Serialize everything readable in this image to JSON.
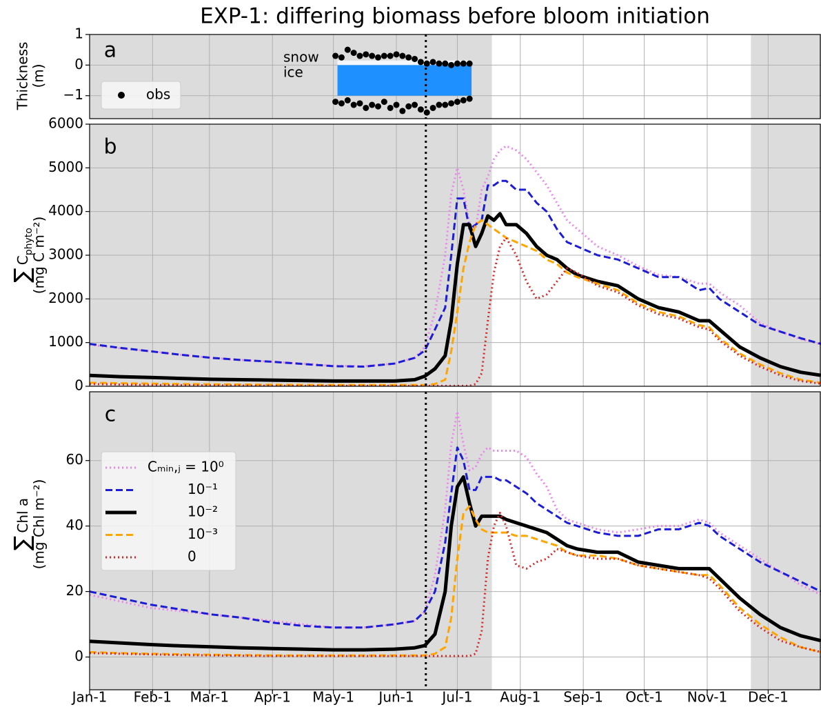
{
  "chart_data": [
    {
      "type": "scatter",
      "title": "EXP-1: differing biomass before bloom initiation",
      "label": "a",
      "ylabel": [
        "Thickness",
        "(m)"
      ],
      "annotations": [
        "snow",
        "ice"
      ],
      "xlim": [
        0,
        360
      ],
      "xticks": [
        0,
        31,
        59,
        90,
        120,
        151,
        181,
        212,
        243,
        273,
        304,
        334
      ],
      "ylim": [
        -1.75,
        1
      ],
      "yticks": [
        {
          "value": -1,
          "label": "−1"
        },
        0,
        1
      ],
      "grid": true,
      "shaded": [
        [
          0,
          198
        ],
        [
          325.5,
          360
        ]
      ],
      "shade_color": "#dcdcdc",
      "vline": 165.5,
      "snow_layer": {
        "x": [
          122,
          188
        ],
        "top": 0.15,
        "bottom": 0,
        "color": "#f3f6fa"
      },
      "ice_layer": {
        "x": [
          122,
          188
        ],
        "top": 0,
        "bottom": -1.0,
        "color": "#1e90ff"
      },
      "obs": {
        "name": "obs",
        "color": "#000000",
        "x": [
          121,
          124,
          127,
          130,
          133,
          136,
          139,
          142,
          145,
          148,
          151,
          154,
          157,
          160,
          163,
          166,
          169,
          172,
          175,
          178,
          181,
          184,
          187
        ],
        "snow_surface": [
          0.3,
          0.25,
          0.5,
          0.4,
          0.3,
          0.35,
          0.3,
          0.25,
          0.3,
          0.3,
          0.35,
          0.3,
          0.25,
          0.2,
          0.1,
          0.05,
          0.1,
          0.05,
          0.05,
          0.0,
          0.05,
          0.05,
          0.05
        ],
        "ice_bottom": [
          -1.2,
          -1.25,
          -1.15,
          -1.3,
          -1.25,
          -1.4,
          -1.3,
          -1.35,
          -1.2,
          -1.4,
          -1.3,
          -1.5,
          -1.35,
          -1.3,
          -1.45,
          -1.55,
          -1.4,
          -1.3,
          -1.3,
          -1.25,
          -1.2,
          -1.15,
          -1.1
        ]
      }
    },
    {
      "type": "line",
      "label": "b",
      "ylabel": {
        "symbol": "∑",
        "main": "C",
        "sub": "phyto",
        "units": "(mg C m⁻²)"
      },
      "xlim": [
        0,
        360
      ],
      "xticks": [
        0,
        31,
        59,
        90,
        120,
        151,
        181,
        212,
        243,
        273,
        304,
        334
      ],
      "ylim": [
        0,
        6000
      ],
      "yticks": [
        0,
        1000,
        2000,
        3000,
        4000,
        5000,
        6000
      ],
      "grid": true,
      "shaded": [
        [
          0,
          198
        ],
        [
          325.5,
          360
        ]
      ],
      "shade_color": "#dcdcdc",
      "vline": 165.5,
      "x": [
        0,
        15,
        30,
        45,
        60,
        75,
        90,
        105,
        120,
        135,
        150,
        160,
        165,
        170,
        175,
        178,
        181,
        184,
        187,
        190,
        193,
        196,
        199,
        202,
        205,
        210,
        215,
        220,
        225,
        230,
        235,
        240,
        250,
        260,
        270,
        280,
        290,
        300,
        305,
        310,
        320,
        330,
        340,
        350,
        360
      ],
      "series": [
        {
          "color": "#ee82ee",
          "style": "dotted",
          "values": [
            950,
            870,
            800,
            720,
            650,
            600,
            560,
            520,
            470,
            460,
            520,
            650,
            900,
            1700,
            3000,
            4400,
            5000,
            4500,
            3700,
            3600,
            4500,
            4800,
            5200,
            5400,
            5500,
            5400,
            5200,
            4900,
            4600,
            4200,
            3800,
            3600,
            3200,
            3000,
            2750,
            2550,
            2500,
            2350,
            2350,
            2150,
            1850,
            1450,
            1250,
            1080,
            960
          ]
        },
        {
          "color": "#1c1cd6",
          "style": "dashed",
          "values": [
            970,
            880,
            800,
            720,
            650,
            600,
            560,
            510,
            460,
            450,
            520,
            650,
            820,
            1300,
            1800,
            3000,
            4300,
            4300,
            3600,
            3700,
            3800,
            4600,
            4600,
            4700,
            4700,
            4500,
            4500,
            4200,
            4000,
            3600,
            3300,
            3200,
            3000,
            2900,
            2700,
            2500,
            2500,
            2200,
            2250,
            2000,
            1700,
            1400,
            1250,
            1100,
            970
          ]
        },
        {
          "color": "#000000",
          "style": "solid",
          "values": [
            250,
            220,
            200,
            180,
            160,
            150,
            140,
            130,
            120,
            120,
            120,
            150,
            230,
            400,
            700,
            1500,
            2800,
            3700,
            3700,
            3200,
            3500,
            3900,
            3800,
            3950,
            3700,
            3700,
            3500,
            3200,
            3000,
            2900,
            2700,
            2550,
            2400,
            2300,
            2000,
            1800,
            1700,
            1500,
            1500,
            1300,
            900,
            650,
            450,
            320,
            250
          ]
        },
        {
          "color": "#ffa500",
          "style": "dashed",
          "values": [
            80,
            70,
            60,
            50,
            45,
            40,
            35,
            30,
            30,
            30,
            30,
            30,
            30,
            50,
            150,
            800,
            1700,
            2700,
            3300,
            3700,
            3800,
            3700,
            3600,
            3500,
            3400,
            3300,
            3200,
            3100,
            2900,
            2800,
            2600,
            2500,
            2350,
            2200,
            1900,
            1700,
            1600,
            1400,
            1350,
            1100,
            750,
            500,
            300,
            150,
            80
          ]
        },
        {
          "color": "#d62728",
          "style": "dotted",
          "values": [
            50,
            40,
            30,
            25,
            20,
            15,
            12,
            10,
            10,
            10,
            10,
            10,
            10,
            10,
            10,
            10,
            10,
            10,
            10,
            50,
            300,
            1500,
            2600,
            3200,
            3400,
            3000,
            2400,
            2000,
            2100,
            2400,
            2700,
            2600,
            2300,
            2150,
            1850,
            1650,
            1550,
            1350,
            1300,
            1050,
            700,
            450,
            250,
            120,
            60
          ]
        }
      ]
    },
    {
      "type": "line",
      "label": "c",
      "ylabel": {
        "symbol": "∑",
        "main": "Chl a",
        "units": "(mg Chl m⁻²)"
      },
      "xlim": [
        0,
        360
      ],
      "xticks": [
        {
          "value": 0,
          "label": "Jan-1"
        },
        {
          "value": 31,
          "label": "Feb-1"
        },
        {
          "value": 59,
          "label": "Mar-1"
        },
        {
          "value": 90,
          "label": "Apr-1"
        },
        {
          "value": 120,
          "label": "May-1"
        },
        {
          "value": 151,
          "label": "Jun-1"
        },
        {
          "value": 181,
          "label": "Jul-1"
        },
        {
          "value": 212,
          "label": "Aug-1"
        },
        {
          "value": 243,
          "label": "Sep-1"
        },
        {
          "value": 273,
          "label": "Oct-1"
        },
        {
          "value": 304,
          "label": "Nov-1"
        },
        {
          "value": 334,
          "label": "Dec-1"
        }
      ],
      "ylim": [
        -10,
        81
      ],
      "yticks": [
        0,
        20,
        40,
        60
      ],
      "grid": true,
      "shaded": [
        [
          0,
          198
        ],
        [
          325.5,
          360
        ]
      ],
      "shade_color": "#dcdcdc",
      "vline": 165.5,
      "x": [
        0,
        15,
        30,
        45,
        60,
        75,
        90,
        105,
        120,
        135,
        150,
        160,
        165,
        170,
        175,
        178,
        181,
        184,
        187,
        190,
        193,
        196,
        199,
        202,
        205,
        210,
        215,
        220,
        225,
        230,
        235,
        240,
        250,
        260,
        270,
        280,
        290,
        300,
        305,
        310,
        320,
        330,
        340,
        350,
        360
      ],
      "series": [
        {
          "name": "Cₘᵢₙ,ⱼ = 10⁰",
          "color": "#ee82ee",
          "style": "dotted",
          "values": [
            19,
            17,
            15,
            14,
            13,
            12,
            11,
            10,
            9,
            9,
            10,
            11,
            14,
            25,
            45,
            65,
            75,
            65,
            57,
            58,
            62,
            64,
            63,
            63,
            63,
            63,
            61,
            56,
            52,
            45,
            42,
            41,
            39,
            38,
            39,
            40,
            40,
            42,
            41,
            38,
            34,
            30,
            26,
            22,
            19
          ]
        },
        {
          "name": "10⁻¹",
          "color": "#1c1cd6",
          "style": "dashed",
          "values": [
            20,
            18,
            16,
            14.5,
            13,
            12,
            10.5,
            9.5,
            9,
            9,
            10,
            11,
            14,
            20,
            35,
            50,
            64,
            60,
            51,
            51,
            55,
            55,
            55,
            54,
            54,
            52,
            50,
            47,
            45,
            43,
            41,
            40,
            38,
            37,
            37,
            39,
            39,
            41,
            40,
            37,
            33,
            29,
            26,
            23,
            20
          ]
        },
        {
          "name": "10⁻²",
          "color": "#000000",
          "style": "solid",
          "values": [
            4.8,
            4.3,
            3.8,
            3.4,
            3.1,
            2.8,
            2.6,
            2.4,
            2.2,
            2.2,
            2.4,
            2.8,
            3.5,
            7,
            20,
            40,
            52,
            55,
            47,
            40,
            43,
            43,
            43,
            43,
            42,
            41,
            40,
            39,
            38,
            36,
            34,
            33,
            32,
            32,
            29,
            28,
            27,
            27,
            27,
            24,
            18,
            13,
            9,
            6.5,
            5
          ]
        },
        {
          "name": "10⁻³",
          "color": "#ffa500",
          "style": "dashed",
          "values": [
            1.5,
            1.2,
            1,
            0.8,
            0.7,
            0.6,
            0.5,
            0.5,
            0.5,
            0.5,
            0.5,
            0.5,
            0.5,
            1,
            3,
            12,
            30,
            44,
            46,
            42,
            39,
            38,
            38,
            38,
            38,
            37,
            37,
            36,
            35,
            34,
            32,
            31,
            31,
            30,
            28,
            27,
            26,
            25,
            25,
            22,
            15,
            10,
            6,
            3,
            1.5
          ]
        },
        {
          "name": "0",
          "color": "#d62728",
          "style": "dotted",
          "values": [
            1.2,
            1,
            0.8,
            0.6,
            0.5,
            0.4,
            0.3,
            0.3,
            0.3,
            0.3,
            0.3,
            0.3,
            0.3,
            0.3,
            0.3,
            0.3,
            0.3,
            0.3,
            0.3,
            1,
            8,
            30,
            40,
            44,
            40,
            28,
            27,
            29,
            30,
            33,
            32,
            31,
            30,
            30,
            28,
            27,
            26,
            25,
            24,
            21,
            14,
            9,
            5,
            3,
            1.5
          ]
        }
      ]
    }
  ]
}
